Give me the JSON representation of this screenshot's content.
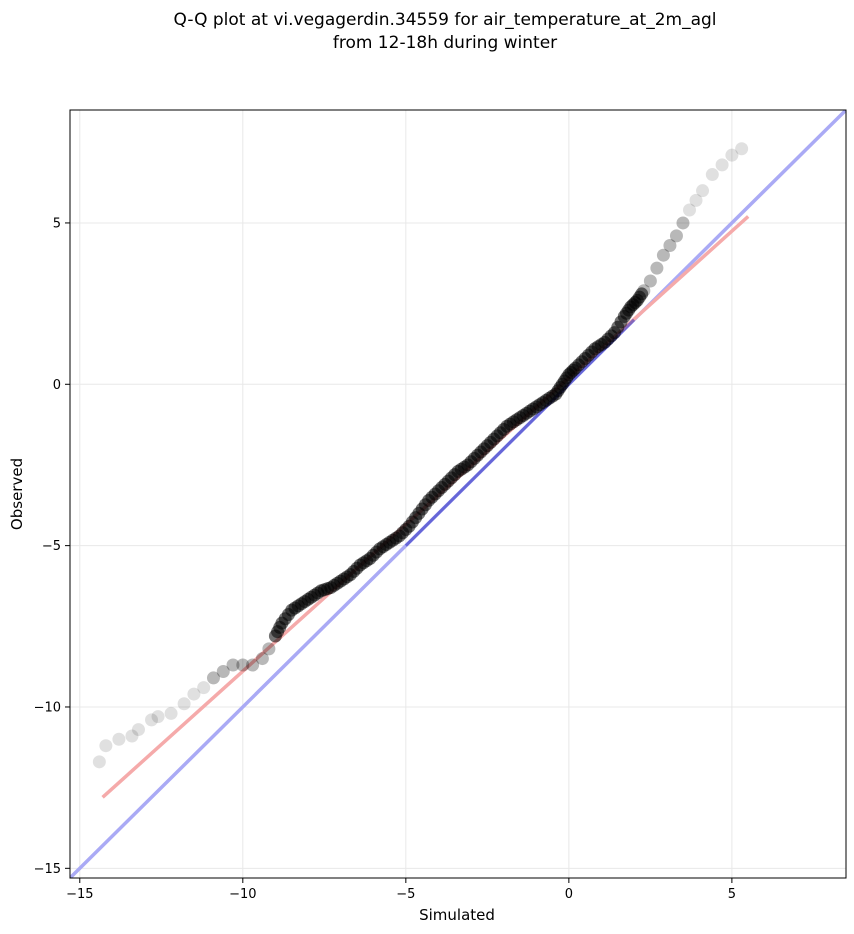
{
  "chart_data": {
    "type": "scatter",
    "title_lines": [
      "Q-Q plot at vi.vegagerdin.34559 for air_temperature_at_2m_agl",
      "from 12-18h during winter"
    ],
    "xlabel": "Simulated",
    "ylabel": "Observed",
    "xlim": [
      -15.3,
      8.5
    ],
    "ylim": [
      -15.3,
      8.5
    ],
    "xticks": [
      -15,
      -10,
      -5,
      0,
      5
    ],
    "yticks": [
      -15,
      -10,
      -5,
      0,
      5
    ],
    "grid": true,
    "colors": {
      "points": "#000000",
      "identity_line": "#aaaaf5",
      "fit_line": "#f5aaaa",
      "highlight_line": "#3030c0"
    },
    "identity_line": {
      "x": [
        -15.3,
        8.5
      ],
      "y": [
        -15.3,
        8.5
      ]
    },
    "fit_line": {
      "x": [
        -14.3,
        5.5
      ],
      "y": [
        -12.8,
        5.2
      ]
    },
    "quantiles": {
      "x": [
        -14.4,
        -14.2,
        -13.8,
        -13.4,
        -13.2,
        -12.8,
        -12.6,
        -12.2,
        -11.8,
        -11.5,
        -11.2,
        -10.9,
        -10.6,
        -10.3,
        -10.0,
        -9.7,
        -9.4,
        -9.2,
        -9.0,
        -8.8,
        -8.5,
        -8.2,
        -7.9,
        -7.6,
        -7.3,
        -7.0,
        -6.7,
        -6.4,
        -6.1,
        -5.8,
        -5.5,
        -5.2,
        -4.9,
        -4.6,
        -4.3,
        -4.0,
        -3.7,
        -3.4,
        -3.1,
        -2.8,
        -2.5,
        -2.2,
        -1.9,
        -1.6,
        -1.3,
        -1.0,
        -0.7,
        -0.4,
        -0.2,
        0.0,
        0.2,
        0.5,
        0.8,
        1.1,
        1.4,
        1.7,
        1.9,
        2.1,
        2.3,
        2.5,
        2.7,
        2.9,
        3.1,
        3.3,
        3.5,
        3.7,
        3.9,
        4.1,
        4.4,
        4.7,
        5.0,
        5.3
      ],
      "y": [
        -11.7,
        -11.2,
        -11.0,
        -10.9,
        -10.7,
        -10.4,
        -10.3,
        -10.2,
        -9.9,
        -9.6,
        -9.4,
        -9.1,
        -8.9,
        -8.7,
        -8.7,
        -8.7,
        -8.5,
        -8.2,
        -7.8,
        -7.4,
        -7.0,
        -6.8,
        -6.6,
        -6.4,
        -6.3,
        -6.1,
        -5.9,
        -5.6,
        -5.4,
        -5.1,
        -4.9,
        -4.7,
        -4.4,
        -4.0,
        -3.6,
        -3.3,
        -3.0,
        -2.7,
        -2.5,
        -2.2,
        -1.9,
        -1.6,
        -1.3,
        -1.1,
        -0.9,
        -0.7,
        -0.5,
        -0.3,
        0.0,
        0.3,
        0.5,
        0.8,
        1.1,
        1.3,
        1.6,
        2.1,
        2.4,
        2.6,
        2.9,
        3.2,
        3.6,
        4.0,
        4.3,
        4.6,
        5.0,
        5.4,
        5.7,
        6.0,
        6.5,
        6.8,
        7.1,
        7.3
      ]
    }
  }
}
